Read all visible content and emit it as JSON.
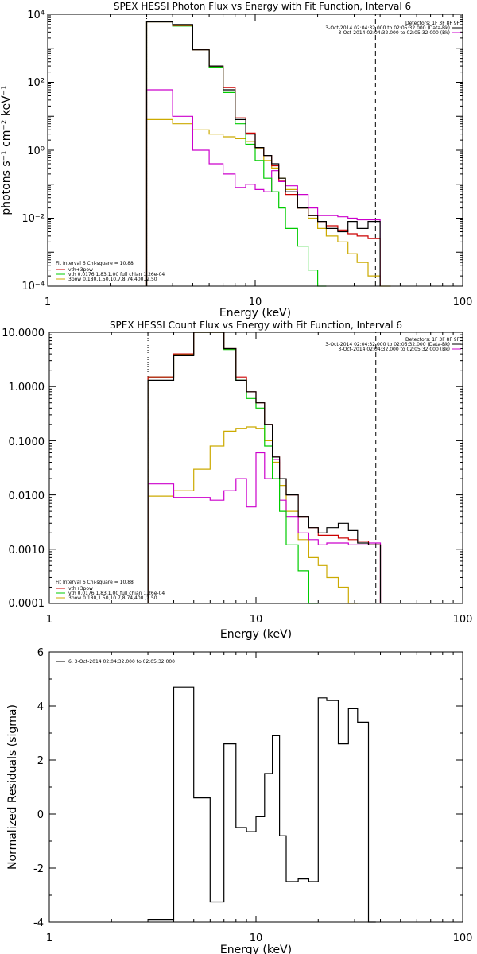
{
  "panel1": {
    "title": "SPEX HESSI Photon Flux vs Energy with Fit Function, Interval 6",
    "xlabel": "Energy (keV)",
    "ylabel": "photons s⁻¹ cm⁻² keV⁻¹",
    "xticks": [
      "1",
      "10",
      "100"
    ],
    "yticks": [
      "10⁴",
      "10²",
      "10⁰",
      "10⁻²",
      "10⁻⁴"
    ],
    "legend_tr": [
      "Detectors: 1F 3F 8F 9F",
      "3-Oct-2014 02:04:32.000 to 02:05:32.000 (Data-Bk)",
      "3-Oct-2014 02:04:32.000 to 02:05:32.000 (Bk)"
    ],
    "legend_bl": [
      "Fit Interval 6   Chi-square = 10.88",
      "vth+3pow",
      "vth 0.0176,1.83,1.00  full chian 1.26e-04",
      "3pow 0.180,1.50,10.7,8.74,400.,2.50"
    ]
  },
  "panel2": {
    "title": "SPEX HESSI Count Flux vs Energy with Fit Function, Interval 6",
    "xlabel": "Energy (keV)",
    "xticks": [
      "1",
      "10",
      "100"
    ],
    "yticks": [
      "10.0000",
      "1.0000",
      "0.1000",
      "0.0100",
      "0.0010",
      "0.0001"
    ],
    "legend_tr": [
      "Detectors: 1F 3F 8F 9F",
      "3-Oct-2014 02:04:32.000 to 02:05:32.000 (Data-Bk)",
      "3-Oct-2014 02:04:32.000 to 02:05:32.000 (Bk)"
    ],
    "legend_bl": [
      "Fit Interval 6   Chi-square = 10.88",
      "vth+3pow",
      "vth 0.0176,1.83,1.00  full chian 1.26e-04",
      "3pow 0.180,1.50,10.7,8.74,400.,2.50"
    ]
  },
  "panel3": {
    "xlabel": "Energy (keV)",
    "ylabel": "Normalized Residuals (sigma)",
    "xticks": [
      "1",
      "10",
      "100"
    ],
    "yticks": [
      "6",
      "4",
      "2",
      "0",
      "-2",
      "-4"
    ],
    "legend": "6. 3-Oct-2014 02:04:32.000 to 02:05:32.000"
  },
  "colors": {
    "data": "#000000",
    "total": "#cc0000",
    "thermal": "#00cc00",
    "pow": "#ccaa00",
    "bk": "#cc00cc"
  },
  "chart_data": [
    {
      "type": "line",
      "title": "SPEX HESSI Photon Flux vs Energy with Fit Function, Interval 6",
      "xscale": "log",
      "yscale": "log",
      "xlim": [
        1,
        100
      ],
      "ylim": [
        0.0001,
        10000
      ],
      "edges": [
        3,
        4,
        5,
        6,
        7,
        8,
        9,
        10,
        11,
        12,
        13,
        14,
        16,
        18,
        20,
        22,
        25,
        28,
        31,
        35,
        40,
        45
      ],
      "series": [
        {
          "name": "Data-Bk",
          "color": "#000000",
          "values": [
            6000,
            5000,
            900,
            300,
            60,
            8,
            3,
            1.2,
            0.7,
            0.4,
            0.15,
            0.06,
            0.02,
            0.012,
            0.008,
            0.005,
            0.004,
            0.008,
            0.005,
            0.008,
            null
          ]
        },
        {
          "name": "vth+3pow",
          "color": "#cc0000",
          "values": [
            6000,
            4700,
            900,
            300,
            70,
            9,
            3.2,
            1.2,
            0.7,
            0.35,
            0.13,
            0.05,
            0.02,
            0.012,
            0.008,
            0.006,
            0.0045,
            0.0035,
            0.003,
            0.0025,
            null
          ]
        },
        {
          "name": "vth",
          "color": "#00cc00",
          "values": [
            6000,
            4500,
            900,
            280,
            50,
            6,
            1.5,
            0.5,
            0.15,
            0.06,
            0.02,
            0.005,
            0.0015,
            0.0003,
            0.0001,
            null,
            null,
            null,
            null,
            null,
            null
          ]
        },
        {
          "name": "3pow",
          "color": "#ccaa00",
          "values": [
            8,
            6,
            4,
            3,
            2.5,
            2.2,
            1.8,
            1.1,
            0.5,
            0.3,
            0.15,
            0.07,
            0.02,
            0.01,
            0.005,
            0.003,
            0.002,
            0.0009,
            0.0005,
            0.0002,
            0.0001
          ]
        },
        {
          "name": "Bk",
          "color": "#cc00cc",
          "values": [
            60,
            10,
            1,
            0.4,
            0.2,
            0.08,
            0.1,
            0.07,
            0.06,
            0.25,
            0.12,
            0.09,
            0.05,
            0.02,
            0.012,
            0.012,
            0.011,
            0.01,
            0.009,
            0.009,
            null
          ]
        }
      ],
      "vlines": [
        {
          "x": 3,
          "style": "dotted"
        },
        {
          "x": 38,
          "style": "dashed"
        }
      ]
    },
    {
      "type": "line",
      "title": "SPEX HESSI Count Flux vs Energy with Fit Function, Interval 6",
      "xscale": "log",
      "yscale": "log",
      "xlim": [
        1,
        100
      ],
      "ylim": [
        0.0001,
        10
      ],
      "edges": [
        3,
        4,
        5,
        6,
        7,
        8,
        9,
        10,
        11,
        12,
        13,
        14,
        16,
        18,
        20,
        22,
        25,
        28,
        31,
        35,
        40,
        45
      ],
      "series": [
        {
          "name": "Data-Bk",
          "color": "#000000",
          "values": [
            1.3,
            3.7,
            10.5,
            11,
            5,
            1.3,
            0.8,
            0.5,
            0.2,
            0.05,
            0.02,
            0.01,
            0.004,
            0.0025,
            0.002,
            0.0025,
            0.003,
            0.0022,
            0.0013,
            0.0012,
            null
          ]
        },
        {
          "name": "vth+3pow",
          "color": "#cc0000",
          "values": [
            1.5,
            4.0,
            10.5,
            11,
            5,
            1.5,
            0.8,
            0.5,
            0.2,
            0.05,
            0.02,
            0.01,
            0.004,
            0.0025,
            0.0018,
            0.0018,
            0.0016,
            0.0015,
            0.0014,
            0.0012,
            null
          ]
        },
        {
          "name": "vth",
          "color": "#00cc00",
          "values": [
            1.5,
            3.9,
            10,
            11,
            4.8,
            1.3,
            0.6,
            0.4,
            0.08,
            0.02,
            0.005,
            0.0012,
            0.0004,
            0.0001,
            null,
            null,
            null,
            null,
            null,
            null,
            null
          ]
        },
        {
          "name": "3pow",
          "color": "#ccaa00",
          "values": [
            0.0095,
            0.012,
            0.03,
            0.08,
            0.15,
            0.17,
            0.18,
            0.17,
            0.1,
            0.04,
            0.015,
            0.005,
            0.0015,
            0.0007,
            0.0005,
            0.0003,
            0.0002,
            0.0001,
            null,
            null,
            null
          ]
        },
        {
          "name": "Bk",
          "color": "#cc00cc",
          "values": [
            0.016,
            0.009,
            0.009,
            0.008,
            0.012,
            0.02,
            0.006,
            0.06,
            0.02,
            0.045,
            0.008,
            0.004,
            0.002,
            0.0015,
            0.0012,
            0.0013,
            0.0013,
            0.0012,
            0.0012,
            0.0013,
            null
          ]
        }
      ],
      "vlines": [
        {
          "x": 3,
          "style": "dotted"
        },
        {
          "x": 38,
          "style": "dashed"
        }
      ]
    },
    {
      "type": "line",
      "xscale": "log",
      "xlim": [
        1,
        100
      ],
      "ylim": [
        -4,
        6
      ],
      "edges": [
        3,
        4,
        5,
        6,
        7,
        8,
        9,
        10,
        11,
        12,
        13,
        14,
        16,
        18,
        20,
        22,
        25,
        28,
        31,
        35,
        38
      ],
      "series": [
        {
          "name": "6. 3-Oct-2014 02:04:32.000 to 02:05:32.000",
          "color": "#000000",
          "values": [
            -3.9,
            4.7,
            0.6,
            -3.25,
            2.6,
            -0.5,
            -0.65,
            -0.1,
            1.5,
            2.9,
            -0.8,
            -2.5,
            -2.4,
            -2.5,
            4.3,
            4.2,
            2.6,
            3.9,
            3.4,
            -4.2
          ]
        }
      ]
    }
  ]
}
